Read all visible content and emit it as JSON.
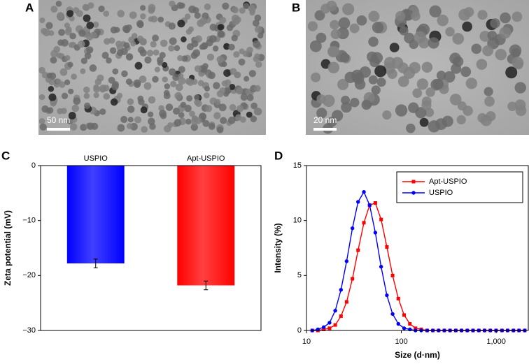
{
  "panels": [
    {
      "label": "A",
      "scale_bar": "50 nm"
    },
    {
      "label": "B",
      "scale_bar": "20 nm"
    }
  ],
  "chart_data": [
    {
      "type": "bar",
      "panel_label": "C",
      "ylabel": "Zeta potential (mV)",
      "categories": [
        "USPIO",
        "Apt-USPIO"
      ],
      "values": [
        -17.8,
        -21.8
      ],
      "errors": [
        0.8,
        0.8
      ],
      "colors": [
        "#0000ff",
        "#ff0000"
      ],
      "ylim": [
        -30,
        0
      ],
      "yticks": [
        {
          "value": -30,
          "label": "−30"
        },
        {
          "value": -20,
          "label": "−20"
        },
        {
          "value": -10,
          "label": "−10"
        },
        0
      ]
    },
    {
      "type": "line",
      "panel_label": "D",
      "xlabel": "Size (d·nm)",
      "ylabel": "Intensity (%)",
      "x": [
        11.5,
        13.2,
        15.2,
        17.5,
        20.1,
        23.1,
        26.5,
        30.5,
        35.0,
        40.3,
        46.3,
        53.2,
        61.2,
        70.4,
        80.9,
        93.0,
        107,
        123,
        141,
        162,
        187,
        215,
        247,
        284,
        326,
        375,
        431,
        496,
        570,
        656,
        754,
        867,
        997,
        1150,
        1320,
        1520,
        1740,
        2000
      ],
      "series": [
        {
          "name": "Apt-USPIO",
          "color": "#ff0000",
          "marker": "square",
          "values": [
            0,
            0,
            0.1,
            0.2,
            0.5,
            1.3,
            2.6,
            4.7,
            7.3,
            9.8,
            11.4,
            11.6,
            10.1,
            7.6,
            5.0,
            2.9,
            1.4,
            0.6,
            0.2,
            0.1,
            0,
            0,
            0,
            0,
            0,
            0,
            0,
            0,
            0,
            0,
            0,
            0,
            0,
            0,
            0,
            0,
            0,
            0
          ]
        },
        {
          "name": "USPIO",
          "color": "#0000ff",
          "marker": "circle",
          "values": [
            0,
            0.1,
            0.3,
            0.7,
            1.8,
            3.7,
            6.3,
            9.3,
            11.7,
            12.6,
            11.4,
            8.9,
            5.8,
            3.2,
            1.5,
            0.6,
            0.2,
            0.1,
            0,
            0,
            0,
            0,
            0,
            0,
            0,
            0,
            0,
            0,
            0,
            0,
            0,
            0,
            0,
            0,
            0,
            0,
            0,
            0
          ]
        }
      ],
      "xscale": "log",
      "xlim": [
        10,
        2180
      ],
      "xticks": [
        10,
        100,
        {
          "value": 1000,
          "label": "1,000"
        }
      ],
      "ylim": [
        0,
        15
      ],
      "yticks": [
        0,
        5,
        10,
        15
      ],
      "legend": "upper right"
    }
  ]
}
